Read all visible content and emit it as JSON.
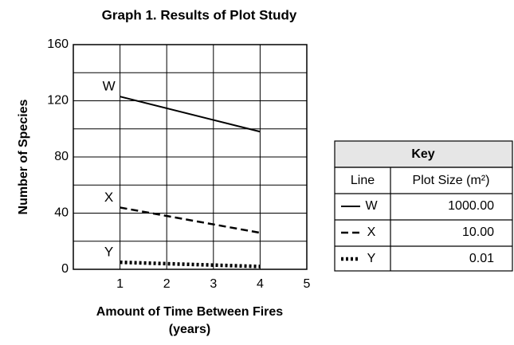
{
  "chart_data": {
    "type": "line",
    "title": "Graph 1. Results of Plot Study",
    "x_label": [
      "Amount of Time Between Fires",
      "(years)"
    ],
    "y_label": "Number of Species",
    "x": [
      1,
      4
    ],
    "series": [
      {
        "name": "W",
        "color": "#000000",
        "dash": "solid",
        "values": [
          123,
          98
        ]
      },
      {
        "name": "X",
        "color": "#000000",
        "dash": "dashed",
        "values": [
          44,
          26
        ]
      },
      {
        "name": "Y",
        "color": "#000000",
        "dash": "dotted",
        "values": [
          5,
          2
        ]
      }
    ],
    "xlim": [
      0,
      5
    ],
    "xticks": [
      1,
      2,
      3,
      4,
      5
    ],
    "ylim": [
      0,
      160
    ],
    "yticks": [
      0,
      40,
      80,
      120,
      160
    ],
    "minor_yticks": [
      20,
      60,
      100,
      140
    ],
    "grid": true
  },
  "key": {
    "title": "Key",
    "headers": [
      "Line",
      "Plot Size (m²)"
    ],
    "plot_sizes": [
      "1000.00",
      "10.00",
      "0.01"
    ]
  }
}
